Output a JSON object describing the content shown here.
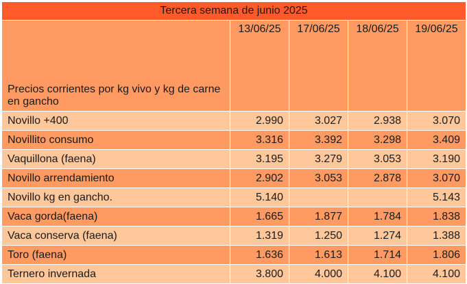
{
  "title": "Tercera semana de junio 2025",
  "header_label": "Precios corrientes  por kg vivo y kg de carne en gancho",
  "dates": [
    "13/06/25",
    "17/06/25",
    "18/06/25",
    "19/06/25"
  ],
  "rows": [
    {
      "label": "Novillo +400",
      "values": [
        "2.990",
        "3.027",
        "2.938",
        "3.070"
      ]
    },
    {
      "label": "Novillito consumo",
      "values": [
        "3.316",
        "3.392",
        "3.298",
        "3.409"
      ]
    },
    {
      "label": "Vaquillona (faena)",
      "values": [
        "3.195",
        "3.279",
        "3.053",
        "3.190"
      ]
    },
    {
      "label": "Novillo arrendamiento",
      "values": [
        "2.902",
        "3.053",
        "2.878",
        "3.070"
      ]
    },
    {
      "label": "Novillo kg en gancho.",
      "values": [
        "5.140",
        "",
        "",
        "5.143"
      ]
    },
    {
      "label": "Vaca gorda(faena)",
      "values": [
        "1.665",
        "1.877",
        "1.784",
        "1.838"
      ]
    },
    {
      "label": "Vaca conserva (faena)",
      "values": [
        "1.319",
        "1.250",
        "1.274",
        "1.388"
      ]
    },
    {
      "label": "Toro (faena)",
      "values": [
        "1.636",
        "1.613",
        "1.714",
        "1.806"
      ]
    },
    {
      "label": "Ternero invernada",
      "values": [
        "3.800",
        "4.000",
        "4.100",
        "4.100"
      ]
    }
  ],
  "colors": {
    "title_bg": "#ff5a2a",
    "dark_row": "#ff9a62",
    "light_row": "#ffc79a"
  }
}
